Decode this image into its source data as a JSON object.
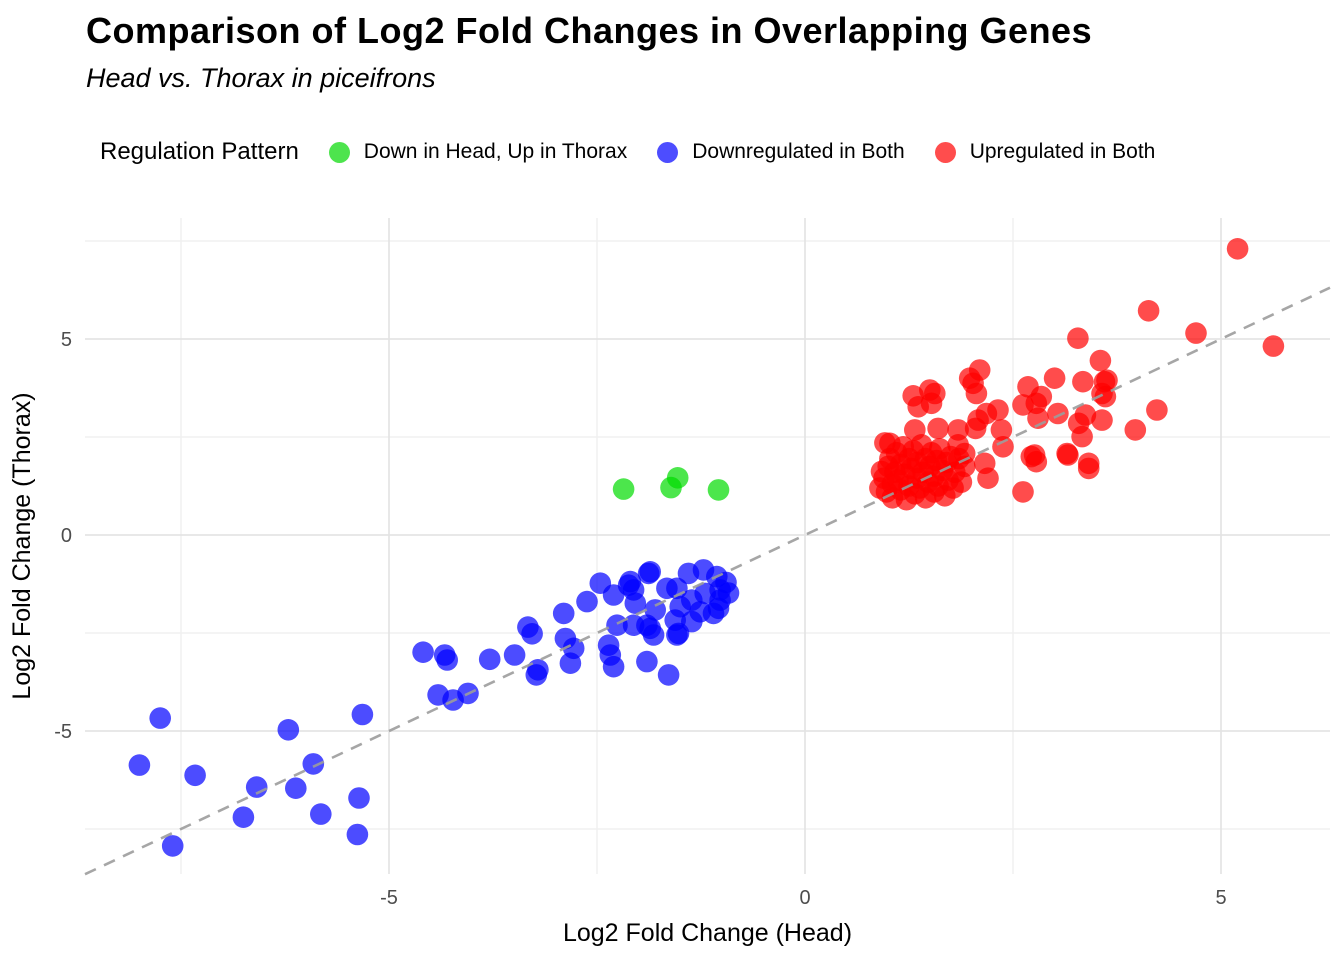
{
  "header": {
    "title": "Comparison of Log2 Fold Changes in Overlapping Genes",
    "subtitle": "Head vs. Thorax in piceifrons"
  },
  "legend": {
    "title": "Regulation Pattern",
    "items": [
      {
        "label": "Down in Head, Up in Thorax",
        "color": "#4DE44D"
      },
      {
        "label": "Downregulated in Both",
        "color": "#4D4DFF"
      },
      {
        "label": "Upregulated in Both",
        "color": "#FF4D4D"
      }
    ]
  },
  "chart_data": {
    "type": "scatter",
    "title": "Comparison of Log2 Fold Changes in Overlapping Genes",
    "subtitle": "Head vs. Thorax in piceifrons",
    "xlabel": "Log2 Fold Change (Head)",
    "ylabel": "Log2 Fold Change (Thorax)",
    "xlim": [
      -8.65,
      6.31
    ],
    "ylim": [
      -8.65,
      8.09
    ],
    "x_ticks": [
      {
        "value": -5,
        "label": "-5"
      },
      {
        "value": 0,
        "label": "0"
      },
      {
        "value": 5,
        "label": "5"
      }
    ],
    "y_ticks": [
      {
        "value": -5,
        "label": "-5"
      },
      {
        "value": 0,
        "label": "0"
      },
      {
        "value": 5,
        "label": "5"
      }
    ],
    "x_minor_ticks": [
      -7.5,
      -2.5,
      2.5,
      7.5
    ],
    "y_minor_ticks": [
      -7.5,
      -2.5,
      2.5,
      7.5
    ],
    "grid": true,
    "legend_position": "top",
    "reference_line": {
      "type": "identity y=x",
      "style": "dashed",
      "color": "#9C9C9C"
    },
    "point_alpha": 0.7,
    "point_radius": 10.8,
    "colors": {
      "grid_major": "#E4E4E4",
      "grid_minor": "#F0F0F0",
      "tick_label": "#4D4D4D",
      "axis_title": "#000000"
    },
    "series": [
      {
        "name": "Down in Head, Up in Thorax",
        "color": "#00DC00",
        "points": [
          [
            -2.18,
            1.17
          ],
          [
            -1.61,
            1.21
          ],
          [
            -1.53,
            1.46
          ],
          [
            -1.04,
            1.15
          ]
        ]
      },
      {
        "name": "Downregulated in Both",
        "color": "#0000FF",
        "points": [
          [
            -8.0,
            -5.87
          ],
          [
            -7.75,
            -4.67
          ],
          [
            -7.6,
            -7.93
          ],
          [
            -7.33,
            -6.13
          ],
          [
            -6.75,
            -7.2
          ],
          [
            -6.59,
            -6.43
          ],
          [
            -6.21,
            -4.97
          ],
          [
            -6.12,
            -6.46
          ],
          [
            -5.91,
            -5.84
          ],
          [
            -5.82,
            -7.12
          ],
          [
            -5.38,
            -7.64
          ],
          [
            -5.36,
            -6.71
          ],
          [
            -5.32,
            -4.58
          ],
          [
            -4.59,
            -2.99
          ],
          [
            -4.41,
            -4.08
          ],
          [
            -4.33,
            -3.06
          ],
          [
            -4.3,
            -3.19
          ],
          [
            -4.23,
            -4.21
          ],
          [
            -4.05,
            -4.04
          ],
          [
            -3.79,
            -3.17
          ],
          [
            -3.49,
            -3.06
          ],
          [
            -3.33,
            -2.35
          ],
          [
            -3.28,
            -2.52
          ],
          [
            -3.23,
            -3.57
          ],
          [
            -3.21,
            -3.44
          ],
          [
            -2.9,
            -2.0
          ],
          [
            -2.88,
            -2.64
          ],
          [
            -2.82,
            -3.27
          ],
          [
            -2.78,
            -2.89
          ],
          [
            -2.62,
            -1.7
          ],
          [
            -2.46,
            -1.23
          ],
          [
            -2.36,
            -2.81
          ],
          [
            -2.34,
            -3.06
          ],
          [
            -2.3,
            -1.53
          ],
          [
            -2.3,
            -3.36
          ],
          [
            -2.26,
            -2.3
          ],
          [
            -2.12,
            -1.28
          ],
          [
            -2.1,
            -1.19
          ],
          [
            -2.06,
            -1.4
          ],
          [
            -2.06,
            -2.3
          ],
          [
            -2.04,
            -1.74
          ],
          [
            -1.9,
            -2.3
          ],
          [
            -1.9,
            -3.23
          ],
          [
            -1.88,
            -0.98
          ],
          [
            -1.86,
            -2.38
          ],
          [
            -1.86,
            -0.94
          ],
          [
            -1.82,
            -2.55
          ],
          [
            -1.8,
            -1.91
          ],
          [
            -1.66,
            -1.36
          ],
          [
            -1.64,
            -3.57
          ],
          [
            -1.56,
            -2.17
          ],
          [
            -1.54,
            -1.36
          ],
          [
            -1.54,
            -2.55
          ],
          [
            -1.52,
            -2.51
          ],
          [
            -1.5,
            -1.83
          ],
          [
            -1.4,
            -0.98
          ],
          [
            -1.36,
            -1.66
          ],
          [
            -1.36,
            -2.21
          ],
          [
            -1.26,
            -1.96
          ],
          [
            -1.22,
            -0.89
          ],
          [
            -1.2,
            -1.49
          ],
          [
            -1.1,
            -2.0
          ],
          [
            -1.06,
            -1.06
          ],
          [
            -1.04,
            -1.87
          ],
          [
            -1.02,
            -1.4
          ],
          [
            -1.02,
            -1.66
          ],
          [
            -0.95,
            -1.21
          ],
          [
            -0.92,
            -1.48
          ]
        ]
      },
      {
        "name": "Upregulated in Both",
        "color": "#FF0000",
        "points": [
          [
            5.2,
            7.3
          ],
          [
            4.13,
            5.72
          ],
          [
            4.7,
            5.15
          ],
          [
            3.28,
            5.02
          ],
          [
            5.63,
            4.82
          ],
          [
            3.55,
            4.45
          ],
          [
            3.63,
            3.95
          ],
          [
            3.6,
            3.91
          ],
          [
            3.34,
            3.91
          ],
          [
            3.57,
            3.61
          ],
          [
            3.61,
            3.53
          ],
          [
            3.57,
            2.93
          ],
          [
            3.0,
            4.0
          ],
          [
            2.84,
            3.53
          ],
          [
            2.68,
            3.78
          ],
          [
            2.1,
            4.21
          ],
          [
            1.98,
            4.0
          ],
          [
            2.02,
            3.87
          ],
          [
            2.06,
            3.61
          ],
          [
            1.5,
            3.7
          ],
          [
            1.56,
            3.61
          ],
          [
            1.3,
            3.55
          ],
          [
            1.52,
            3.36
          ],
          [
            1.36,
            3.27
          ],
          [
            4.23,
            3.19
          ],
          [
            3.97,
            2.68
          ],
          [
            2.62,
            3.32
          ],
          [
            2.78,
            3.36
          ],
          [
            2.8,
            2.98
          ],
          [
            3.04,
            3.1
          ],
          [
            3.37,
            3.06
          ],
          [
            3.33,
            2.51
          ],
          [
            3.29,
            2.85
          ],
          [
            2.08,
            2.93
          ],
          [
            2.18,
            3.1
          ],
          [
            2.32,
            3.19
          ],
          [
            2.36,
            2.68
          ],
          [
            2.38,
            2.25
          ],
          [
            2.16,
            1.83
          ],
          [
            2.2,
            1.45
          ],
          [
            2.05,
            2.72
          ],
          [
            2.72,
            2.0
          ],
          [
            2.78,
            1.87
          ],
          [
            3.16,
            2.04
          ],
          [
            3.41,
            1.83
          ],
          [
            3.41,
            1.7
          ],
          [
            3.15,
            2.08
          ],
          [
            2.76,
            2.04
          ],
          [
            2.62,
            1.1
          ],
          [
            1.32,
            2.68
          ],
          [
            1.6,
            2.72
          ],
          [
            1.84,
            2.68
          ],
          [
            1.84,
            2.3
          ],
          [
            1.92,
            2.08
          ],
          [
            1.02,
            2.34
          ],
          [
            0.96,
            2.35
          ],
          [
            0.9,
            1.2
          ],
          [
            0.92,
            1.62
          ],
          [
            0.95,
            1.45
          ],
          [
            0.98,
            1.1
          ],
          [
            1.0,
            1.75
          ],
          [
            1.02,
            1.95
          ],
          [
            1.05,
            1.3
          ],
          [
            1.05,
            0.95
          ],
          [
            1.08,
            1.6
          ],
          [
            1.1,
            2.1
          ],
          [
            1.12,
            1.4
          ],
          [
            1.15,
            1.15
          ],
          [
            1.15,
            1.8
          ],
          [
            1.18,
            2.25
          ],
          [
            1.2,
            1.55
          ],
          [
            1.22,
            0.9
          ],
          [
            1.25,
            1.95
          ],
          [
            1.25,
            1.25
          ],
          [
            1.28,
            1.7
          ],
          [
            1.3,
            2.15
          ],
          [
            1.32,
            1.05
          ],
          [
            1.35,
            1.45
          ],
          [
            1.35,
            1.85
          ],
          [
            1.38,
            1.2
          ],
          [
            1.4,
            2.3
          ],
          [
            1.42,
            1.6
          ],
          [
            1.45,
            0.95
          ],
          [
            1.45,
            1.95
          ],
          [
            1.48,
            1.35
          ],
          [
            1.5,
            1.75
          ],
          [
            1.52,
            2.1
          ],
          [
            1.55,
            1.1
          ],
          [
            1.55,
            1.5
          ],
          [
            1.58,
            1.9
          ],
          [
            1.6,
            1.25
          ],
          [
            1.62,
            2.2
          ],
          [
            1.65,
            1.65
          ],
          [
            1.68,
            1.0
          ],
          [
            1.7,
            1.85
          ],
          [
            1.72,
            1.4
          ],
          [
            1.75,
            2.0
          ],
          [
            1.78,
            1.2
          ],
          [
            1.8,
            1.6
          ],
          [
            1.85,
            1.95
          ],
          [
            1.88,
            1.35
          ],
          [
            1.92,
            1.75
          ]
        ]
      }
    ]
  }
}
